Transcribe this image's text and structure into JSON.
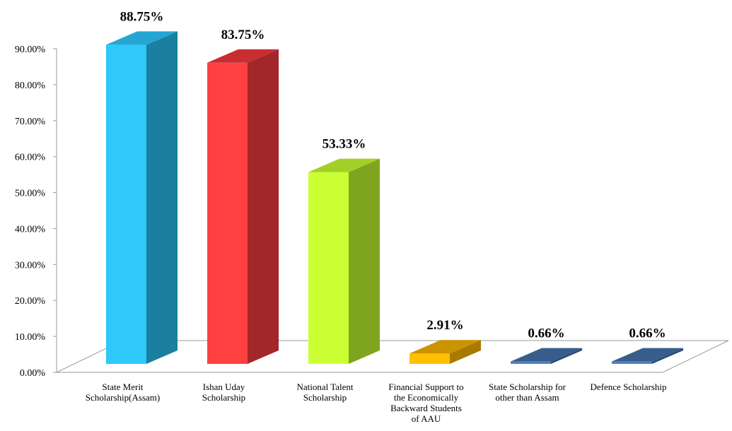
{
  "chart_data": {
    "type": "bar",
    "title": "",
    "xlabel": "",
    "ylabel": "",
    "ylim": [
      0,
      90
    ],
    "y_ticks": [
      "0.00%",
      "10.00%",
      "20.00%",
      "30.00%",
      "40.00%",
      "50.00%",
      "60.00%",
      "70.00%",
      "80.00%",
      "90.00%"
    ],
    "grid": false,
    "legend": "none",
    "style": "3d-column",
    "categories": [
      [
        "State Merit",
        "Scholarship(Assam)"
      ],
      [
        "Ishan Uday",
        "Scholarship"
      ],
      [
        "National Talent",
        "Scholarship"
      ],
      [
        "Financial Support to",
        "the Economically",
        "Backward Students",
        "of AAU"
      ],
      [
        "State Scholarship for",
        "other than Assam"
      ],
      [
        "Defence Scholarship"
      ]
    ],
    "values": [
      88.75,
      83.75,
      53.33,
      2.91,
      0.66,
      0.66
    ],
    "data_labels": [
      "88.75%",
      "83.75%",
      "53.33%",
      "2.91%",
      "0.66%",
      "0.66%"
    ],
    "colors": [
      {
        "front": "#2ec8fb",
        "side": "#1a7fa0",
        "top": "#25a6d2"
      },
      {
        "front": "#ff4040",
        "side": "#a2262a",
        "top": "#c92d31"
      },
      {
        "front": "#ccff33",
        "side": "#7fa51f",
        "top": "#a3cf28"
      },
      {
        "front": "#ffc000",
        "side": "#a87a00",
        "top": "#c99400"
      },
      {
        "front": "#4f81bd",
        "side": "#2c4d79",
        "top": "#385d8a"
      },
      {
        "front": "#4f81bd",
        "side": "#2c4d79",
        "top": "#385d8a"
      }
    ]
  }
}
